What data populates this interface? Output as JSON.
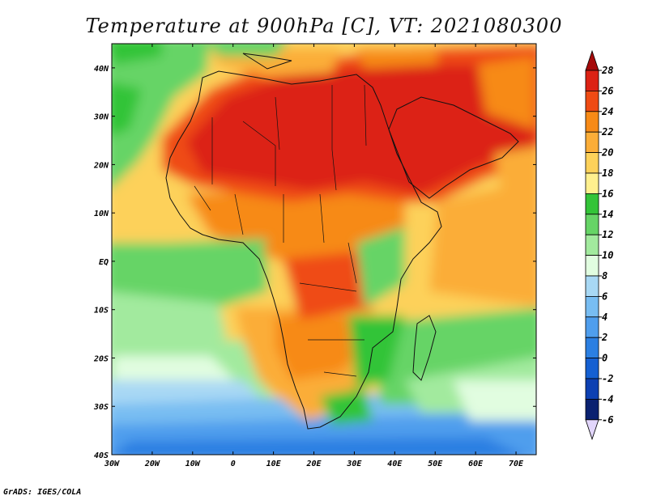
{
  "title": "Temperature at 900hPa [C], VT: 2021080300",
  "footer": "GrADS: IGES/COLA",
  "map": {
    "lon_range": [
      -30,
      75
    ],
    "lat_range": [
      -40,
      45
    ],
    "lat_labels": [
      "40N",
      "30N",
      "20N",
      "10N",
      "EQ",
      "10S",
      "20S",
      "30S",
      "40S"
    ],
    "lon_labels": [
      "30W",
      "20W",
      "10W",
      "0",
      "10E",
      "20E",
      "30E",
      "40E",
      "50E",
      "60E",
      "70E"
    ]
  },
  "colorbar": {
    "labels": [
      "28",
      "26",
      "24",
      "22",
      "20",
      "18",
      "16",
      "14",
      "12",
      "10",
      "8",
      "6",
      "4",
      "2",
      "0",
      "-2",
      "-4",
      "-6"
    ],
    "colors": [
      "#a50a0a",
      "#dc2214",
      "#ef4b14",
      "#f78a17",
      "#fbad38",
      "#fdd15a",
      "#fff08e",
      "#33c438",
      "#66d466",
      "#a2ea9e",
      "#e1fde0",
      "#a8d8f4",
      "#78bdf2",
      "#4f9eed",
      "#2b7fe2",
      "#1560d2",
      "#0d40b2",
      "#0a2170",
      "#e2d6fb"
    ]
  }
}
